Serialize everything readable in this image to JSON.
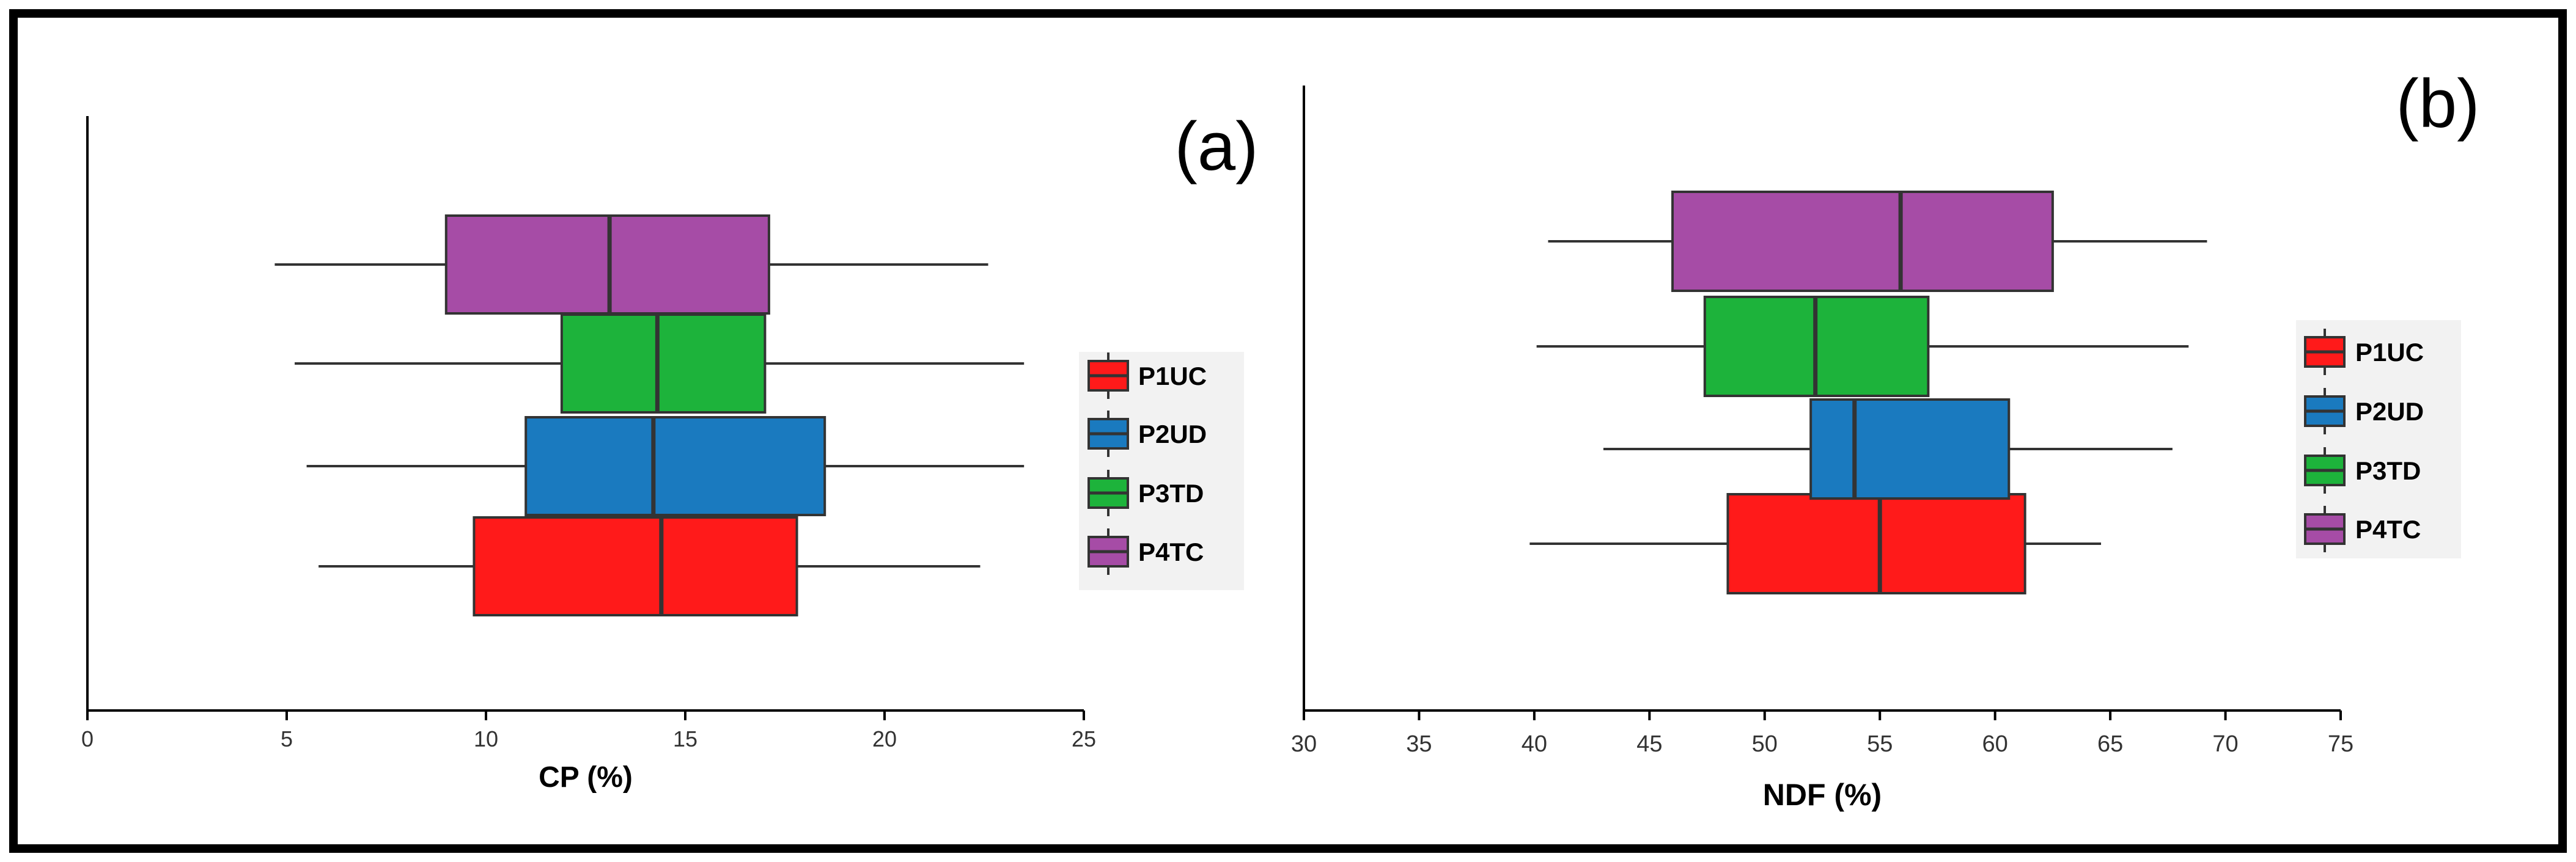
{
  "chart_data": [
    {
      "type": "boxplot",
      "panel_label": "(a)",
      "xlabel": "CP (%)",
      "xlim": [
        0,
        25
      ],
      "xticks": [
        0,
        5,
        10,
        15,
        20,
        25
      ],
      "grid": false,
      "legend_position": "right",
      "legend": [
        "P1UC",
        "P2UD",
        "P3TD",
        "P4TC"
      ],
      "series": [
        {
          "name": "P1UC",
          "color": "#ff1a1a",
          "min": 5.8,
          "q1": 9.7,
          "median": 14.4,
          "q3": 17.8,
          "max": 22.4
        },
        {
          "name": "P2UD",
          "color": "#1a7abf",
          "min": 5.5,
          "q1": 11.0,
          "median": 14.2,
          "q3": 18.5,
          "max": 23.5
        },
        {
          "name": "P3TD",
          "color": "#1db33b",
          "min": 5.2,
          "q1": 11.9,
          "median": 14.3,
          "q3": 17.0,
          "max": 23.5
        },
        {
          "name": "P4TC",
          "color": "#a64ca6",
          "min": 4.7,
          "q1": 9.0,
          "median": 13.1,
          "q3": 17.1,
          "max": 22.6
        }
      ]
    },
    {
      "type": "boxplot",
      "panel_label": "(b)",
      "xlabel": "NDF (%)",
      "xlim": [
        30,
        75
      ],
      "xticks": [
        30,
        35,
        40,
        45,
        50,
        55,
        60,
        65,
        70,
        75
      ],
      "grid": false,
      "legend_position": "right",
      "legend": [
        "P1UC",
        "P2UD",
        "P3TD",
        "P4TC"
      ],
      "series": [
        {
          "name": "P1UC",
          "color": "#ff1a1a",
          "min": 39.8,
          "q1": 48.4,
          "median": 55.0,
          "q3": 61.3,
          "max": 64.6
        },
        {
          "name": "P2UD",
          "color": "#1a7abf",
          "min": 43.0,
          "q1": 52.0,
          "median": 53.9,
          "q3": 60.6,
          "max": 67.7
        },
        {
          "name": "P3TD",
          "color": "#1db33b",
          "min": 40.1,
          "q1": 47.4,
          "median": 52.2,
          "q3": 57.1,
          "max": 68.4
        },
        {
          "name": "P4TC",
          "color": "#a64ca6",
          "min": 40.6,
          "q1": 46.0,
          "median": 55.9,
          "q3": 62.5,
          "max": 69.2
        }
      ]
    }
  ]
}
